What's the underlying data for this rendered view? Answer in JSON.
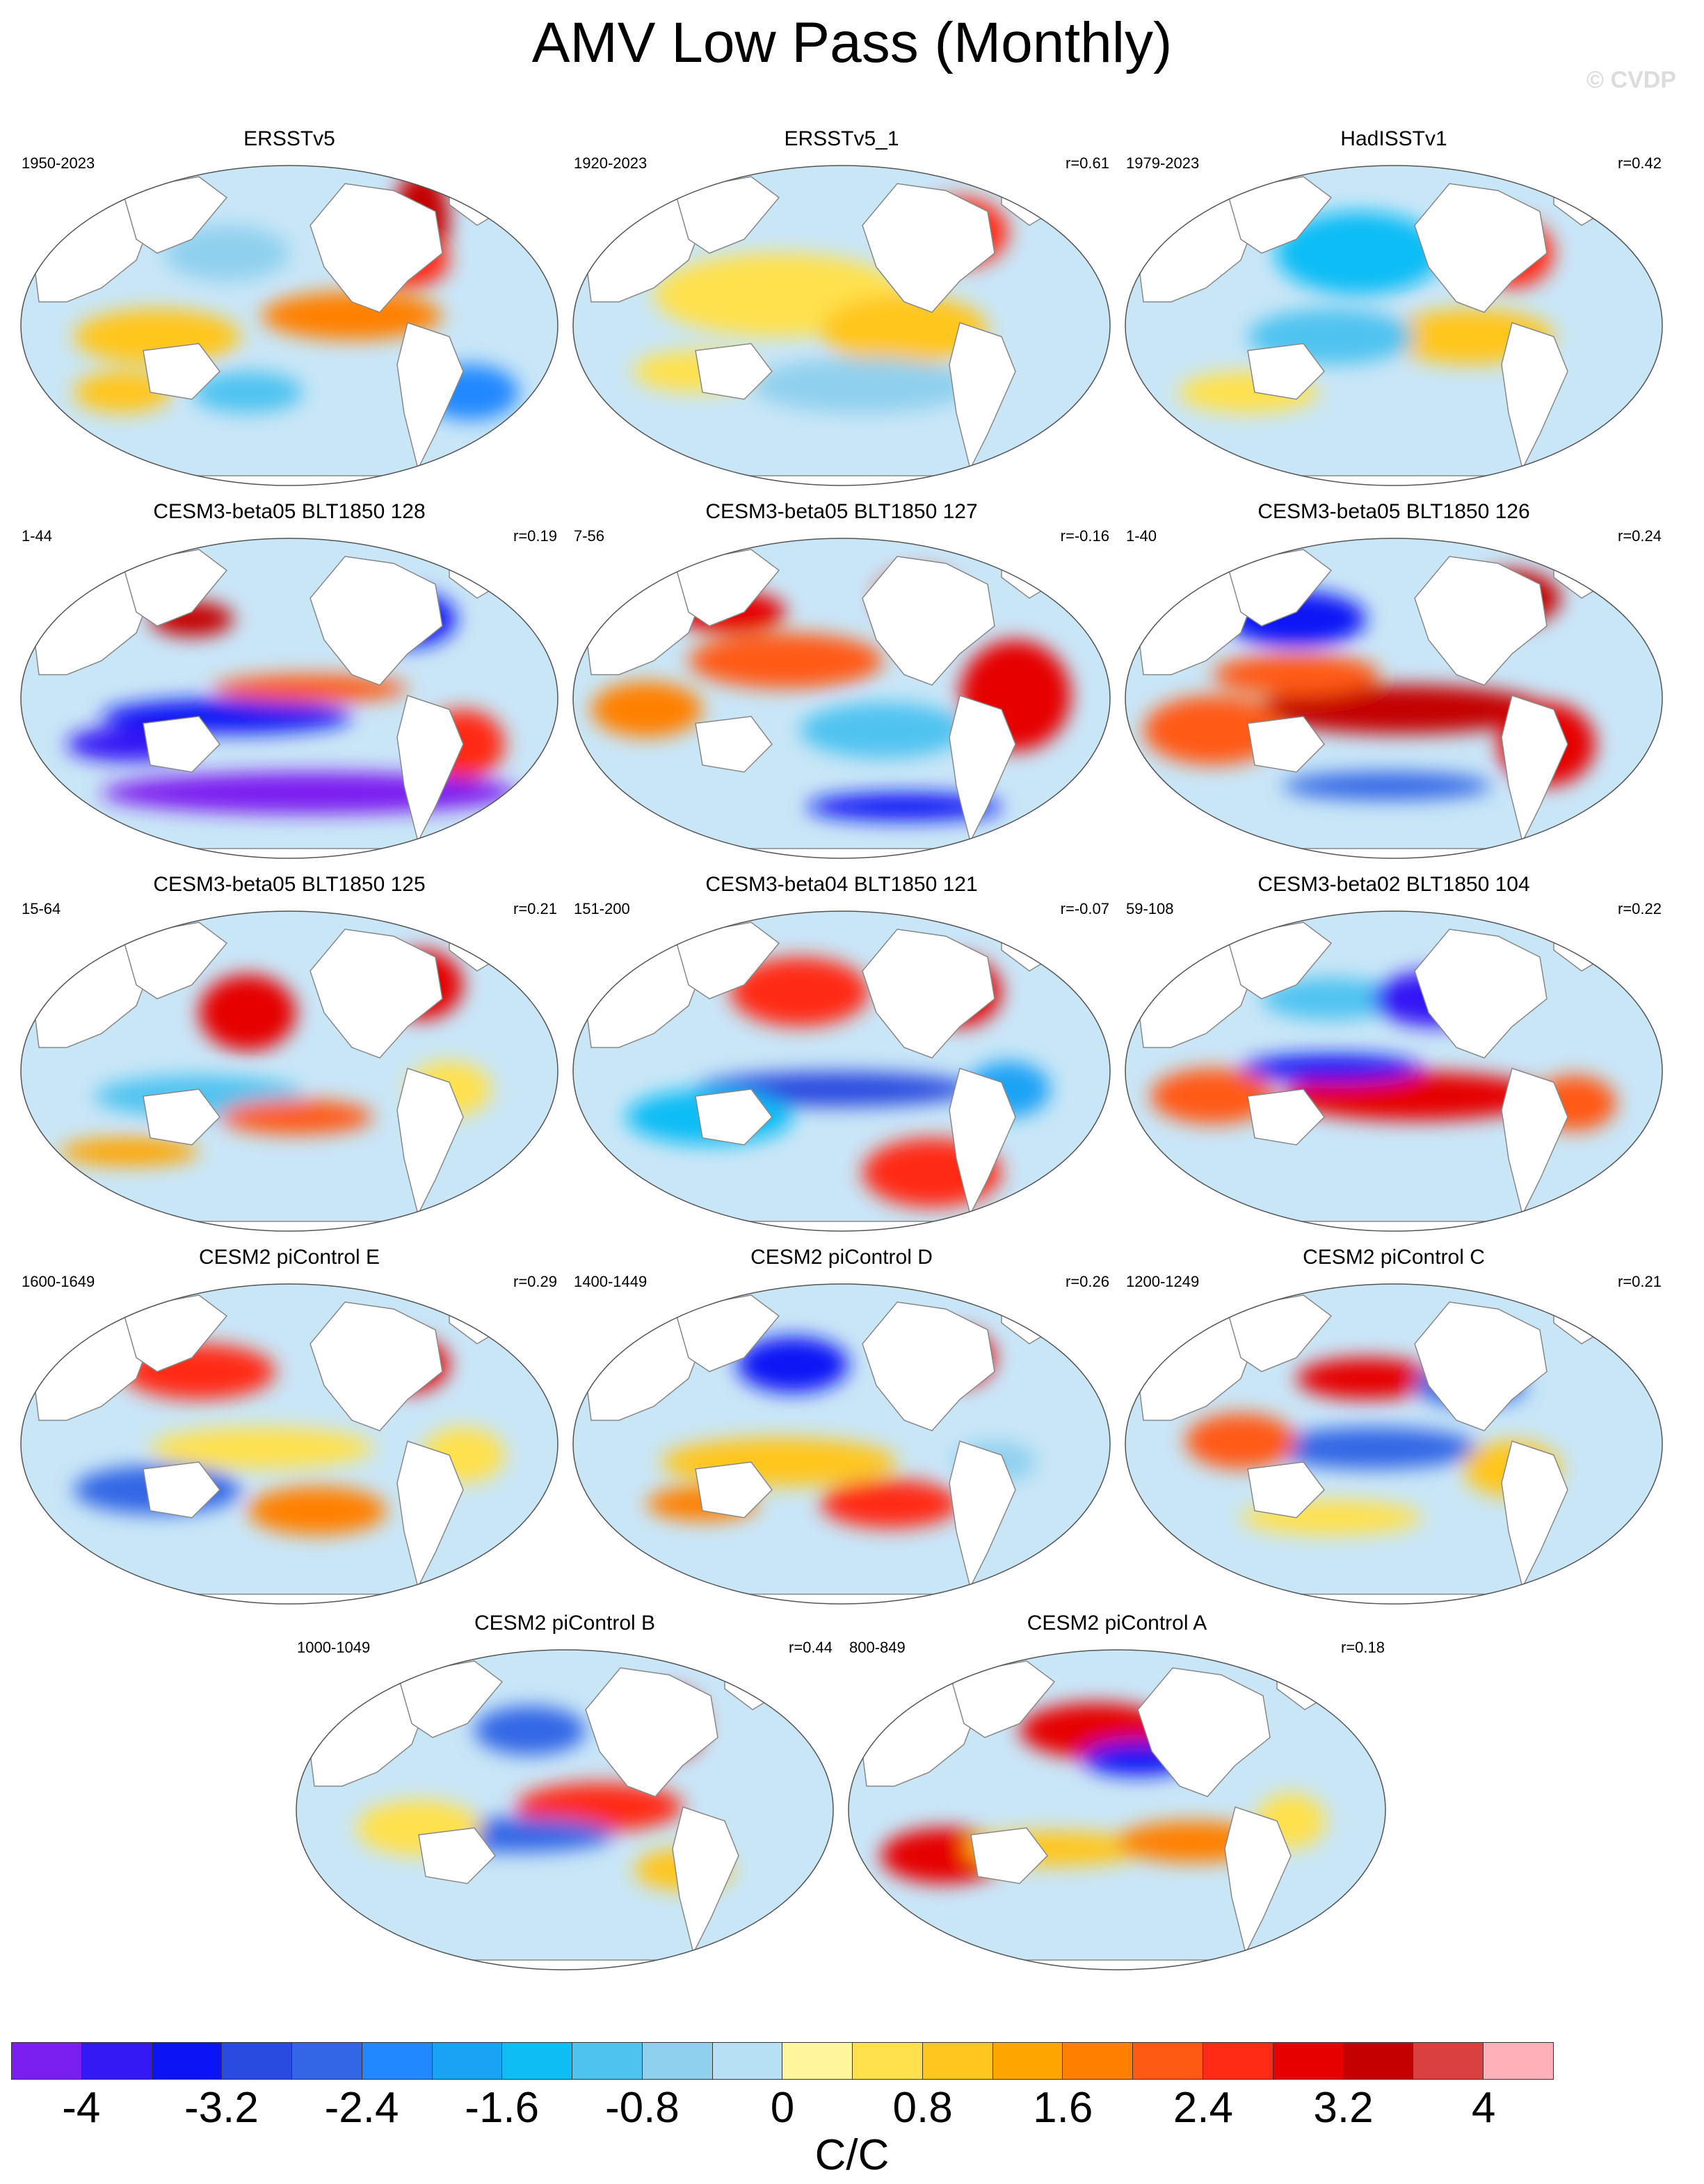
{
  "title": "AMV Low Pass (Monthly)",
  "watermark": "© CVDP",
  "panels": [
    {
      "title": "ERSSTv5",
      "years": "1950-2023",
      "r": ""
    },
    {
      "title": "ERSSTv5_1",
      "years": "1920-2023",
      "r": "r=0.61"
    },
    {
      "title": "HadISSTv1",
      "years": "1979-2023",
      "r": "r=0.42"
    },
    {
      "title": "CESM3-beta05 BLT1850 128",
      "years": "1-44",
      "r": "r=0.19"
    },
    {
      "title": "CESM3-beta05 BLT1850 127",
      "years": "7-56",
      "r": "r=-0.16"
    },
    {
      "title": "CESM3-beta05 BLT1850 126",
      "years": "1-40",
      "r": "r=0.24"
    },
    {
      "title": "CESM3-beta05 BLT1850 125",
      "years": "15-64",
      "r": "r=0.21"
    },
    {
      "title": "CESM3-beta04 BLT1850 121",
      "years": "151-200",
      "r": "r=-0.07"
    },
    {
      "title": "CESM3-beta02 BLT1850 104",
      "years": "59-108",
      "r": "r=0.22"
    },
    {
      "title": "CESM2 piControl E",
      "years": "1600-1649",
      "r": "r=0.29"
    },
    {
      "title": "CESM2 piControl D",
      "years": "1400-1449",
      "r": "r=0.26"
    },
    {
      "title": "CESM2 piControl C",
      "years": "1200-1249",
      "r": "r=0.21"
    },
    {
      "title": "CESM2 piControl B",
      "years": "1000-1049",
      "r": "r=0.44"
    },
    {
      "title": "CESM2 piControl A",
      "years": "800-849",
      "r": "r=0.18"
    }
  ],
  "colorbar": {
    "colors": [
      "#7b1ff0",
      "#3419f5",
      "#0a14f5",
      "#2a4be0",
      "#3366e6",
      "#2288ff",
      "#1aa3f5",
      "#0fbdf5",
      "#4fc3f0",
      "#8fd0ee",
      "#b8e0f5",
      "#fff59d",
      "#ffe14d",
      "#ffc61f",
      "#ffa500",
      "#ff8000",
      "#ff5a14",
      "#ff2b14",
      "#e60000",
      "#c40000",
      "#d94040",
      "#ffb0b8"
    ],
    "tick_labels": [
      "-4",
      "-3.2",
      "-2.4",
      "-1.6",
      "-0.8",
      "0",
      "0.8",
      "1.6",
      "2.4",
      "3.2",
      "4"
    ],
    "units": "C/C"
  }
}
